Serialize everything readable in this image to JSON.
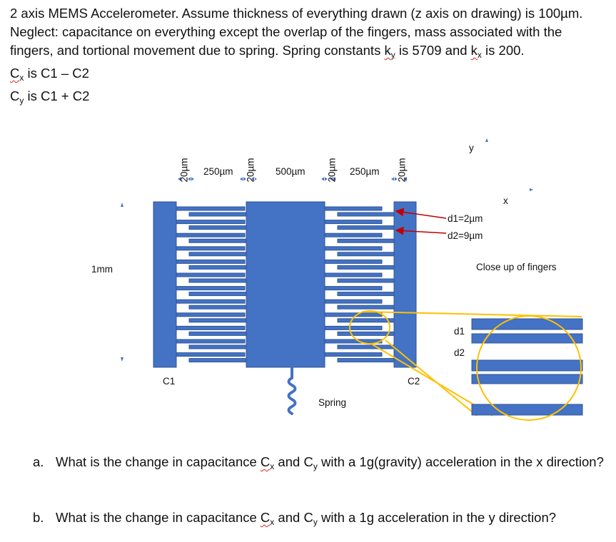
{
  "problem": {
    "intro_pre_ky": "2 axis MEMS Accelerometer. Assume thickness of everything drawn (z axis on drawing) is 100µm. Neglect: capacitance on everything except the overlap of the fingers, mass associated with the fingers, and tortional movement due to spring. Spring constants ",
    "ky_symbol": "k",
    "ky_sub": "y",
    "intro_mid": " is 5709 and ",
    "kx_symbol": "k",
    "kx_sub": "x",
    "intro_end": " is 200.",
    "cx_symbol": "C",
    "cx_sub": "x",
    "cx_def": " is C1 – C2",
    "cy_symbol": "C",
    "cy_sub": "y",
    "cy_def": " is C1 + C2"
  },
  "diagram": {
    "dims": {
      "finger_width_left": "20µm",
      "gap_left": "250µm",
      "finger_width_mid_left": "20µm",
      "mass_width": "500µm",
      "finger_width_mid_right": "20µm",
      "gap_right": "250µm",
      "finger_width_right": "20µm",
      "height": "1mm"
    },
    "axis_y": "y",
    "axis_x": "x",
    "d1_value": "d1=2µm",
    "d2_value": "d2=9µm",
    "c1_label": "C1",
    "c2_label": "C2",
    "spring_label": "Spring",
    "closeup_title": "Close up of fingers",
    "closeup_d1": "d1",
    "closeup_d2": "d2",
    "colors": {
      "structure": "#4472c4",
      "structure_edge": "#2f5597",
      "highlight": "#ffc000",
      "arrow": "#c00000"
    }
  },
  "questions": [
    {
      "letter": "a.",
      "pre": "What is the change in capacitance ",
      "cx": "C",
      "cx_sub": "x",
      "mid": " and ",
      "cy": "C",
      "cy_sub": "y",
      "post": " with a 1g(gravity) acceleration in the x direction?"
    },
    {
      "letter": "b.",
      "pre": "What is the change in capacitance ",
      "cx": "C",
      "cx_sub": "x",
      "mid": " and ",
      "cy": "C",
      "cy_sub": "y",
      "post": " with a 1g acceleration in the y direction?"
    }
  ]
}
